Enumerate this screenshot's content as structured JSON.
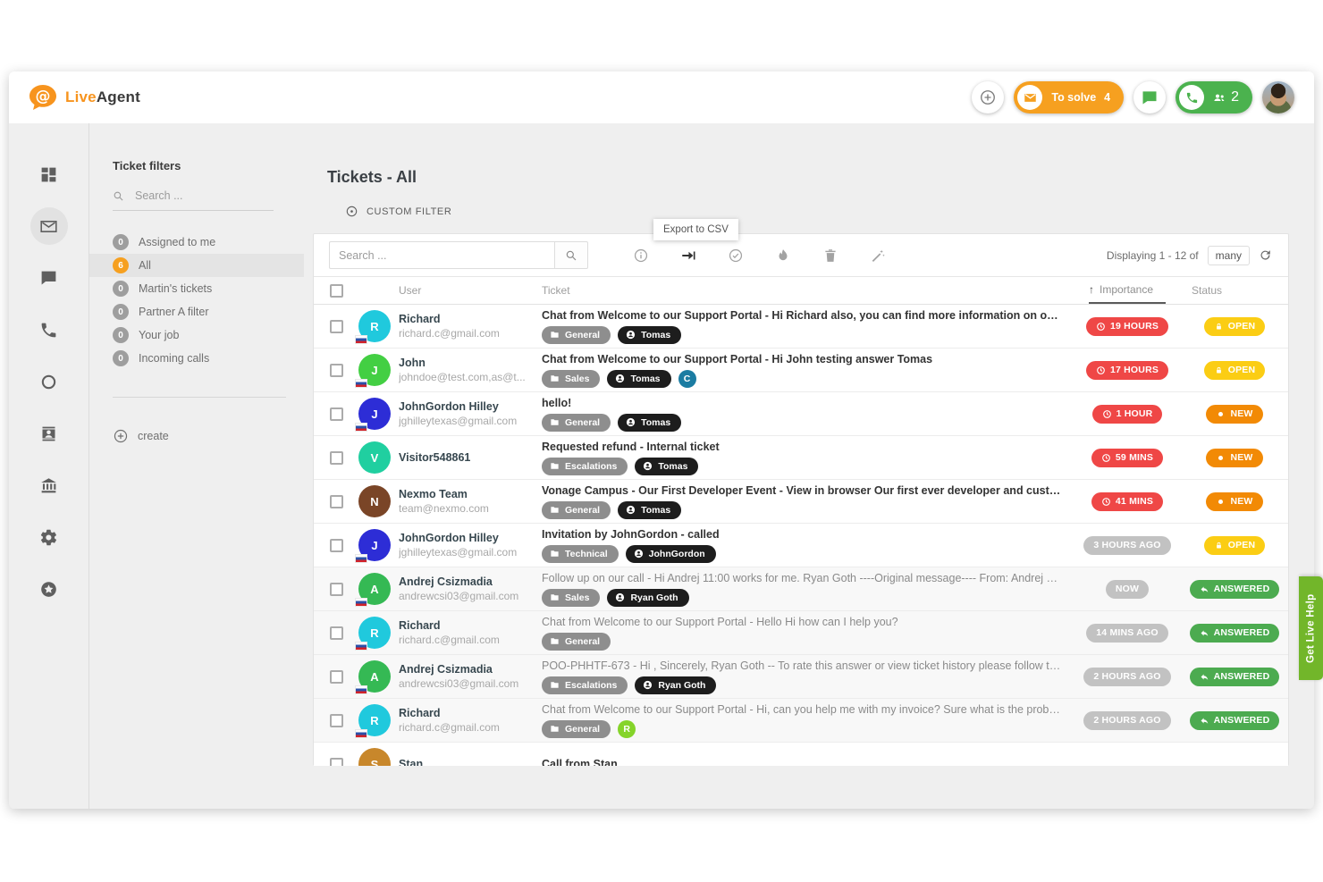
{
  "header": {
    "logo_live": "Live",
    "logo_agent": "Agent",
    "to_solve_label": "To solve",
    "to_solve_count": "4",
    "calls_count": "2"
  },
  "sidebar_icons": [
    {
      "name": "dashboard",
      "active": false
    },
    {
      "name": "mail",
      "active": true
    },
    {
      "name": "chat",
      "active": false
    },
    {
      "name": "phone",
      "active": false
    },
    {
      "name": "ring",
      "active": false
    },
    {
      "name": "contacts",
      "active": false
    },
    {
      "name": "company",
      "active": false
    },
    {
      "name": "settings",
      "active": false
    },
    {
      "name": "star",
      "active": false
    }
  ],
  "filters": {
    "title": "Ticket filters",
    "search_placeholder": "Search ...",
    "items": [
      {
        "count": "0",
        "label": "Assigned to me",
        "active": false
      },
      {
        "count": "6",
        "label": "All",
        "active": true
      },
      {
        "count": "0",
        "label": "Martin's tickets",
        "active": false
      },
      {
        "count": "0",
        "label": "Partner A filter",
        "active": false
      },
      {
        "count": "0",
        "label": "Your job",
        "active": false
      },
      {
        "count": "0",
        "label": "Incoming calls",
        "active": false
      }
    ],
    "create_label": "create"
  },
  "main": {
    "title": "Tickets - All",
    "custom_filter_label": "CUSTOM FILTER",
    "tooltip": "Export to CSV",
    "search_placeholder": "Search ...",
    "paging_text": "Displaying 1 - 12 of",
    "page_size": "many",
    "columns": {
      "user": "User",
      "ticket": "Ticket",
      "importance": "Importance",
      "status": "Status",
      "sort_arrow": "↑"
    }
  },
  "toolbar_icons": [
    "info",
    "export",
    "check-circle",
    "flame",
    "trash",
    "wand"
  ],
  "rows": [
    {
      "initial": "R",
      "avatar_color": "#20c9dd",
      "flag": true,
      "name": "Richard",
      "email": "richard.c@gmail.com",
      "subject": "Chat from Welcome to our Support Portal - Hi Richard also, you can find more information on our YouTube ...",
      "unread": true,
      "tags": [
        {
          "kind": "dept",
          "label": "General"
        },
        {
          "kind": "agent",
          "label": "Tomas"
        }
      ],
      "importance": {
        "label": "19 HOURS",
        "type": "red"
      },
      "status": {
        "label": "OPEN",
        "type": "open"
      }
    },
    {
      "initial": "J",
      "avatar_color": "#43cf43",
      "flag": true,
      "name": "John",
      "email": "johndoe@test.com,as@t...",
      "subject": "Chat from Welcome to our Support Portal - Hi John testing answer Tomas",
      "unread": true,
      "tags": [
        {
          "kind": "dept",
          "label": "Sales"
        },
        {
          "kind": "agent",
          "label": "Tomas"
        },
        {
          "kind": "badge",
          "label": "C",
          "color": "#1b7ca2"
        }
      ],
      "importance": {
        "label": "17 HOURS",
        "type": "red"
      },
      "status": {
        "label": "OPEN",
        "type": "open"
      }
    },
    {
      "initial": "J",
      "avatar_color": "#2d2dd6",
      "flag": true,
      "name": "JohnGordon Hilley",
      "email": "jghilleytexas@gmail.com",
      "subject": "hello!",
      "unread": true,
      "tags": [
        {
          "kind": "dept",
          "label": "General"
        },
        {
          "kind": "agent",
          "label": "Tomas"
        }
      ],
      "importance": {
        "label": "1 HOUR",
        "type": "red"
      },
      "status": {
        "label": "NEW",
        "type": "new"
      }
    },
    {
      "initial": "V",
      "avatar_color": "#20cfa0",
      "flag": false,
      "name": "Visitor548861",
      "email": "",
      "subject": "Requested refund - Internal ticket",
      "unread": true,
      "tags": [
        {
          "kind": "dept",
          "label": "Escalations"
        },
        {
          "kind": "agent",
          "label": "Tomas"
        }
      ],
      "importance": {
        "label": "59 MINS",
        "type": "red"
      },
      "status": {
        "label": "NEW",
        "type": "new"
      }
    },
    {
      "initial": "N",
      "avatar_color": "#7a4527",
      "flag": false,
      "name": "Nexmo Team",
      "email": "team@nexmo.com",
      "subject": "Vonage Campus - Our First Developer Event - View in browser Our first ever developer and customer confer...",
      "unread": true,
      "tags": [
        {
          "kind": "dept",
          "label": "General"
        },
        {
          "kind": "agent",
          "label": "Tomas"
        }
      ],
      "importance": {
        "label": "41 MINS",
        "type": "red"
      },
      "status": {
        "label": "NEW",
        "type": "new"
      }
    },
    {
      "initial": "J",
      "avatar_color": "#2d2dd6",
      "flag": true,
      "name": "JohnGordon Hilley",
      "email": "jghilleytexas@gmail.com",
      "subject": "Invitation by JohnGordon - called",
      "unread": true,
      "tags": [
        {
          "kind": "dept",
          "label": "Technical"
        },
        {
          "kind": "agent",
          "label": "JohnGordon"
        }
      ],
      "importance": {
        "label": "3 HOURS AGO",
        "type": "gray"
      },
      "status": {
        "label": "OPEN",
        "type": "open"
      }
    },
    {
      "initial": "A",
      "avatar_color": "#35b954",
      "flag": true,
      "name": "Andrej Csizmadia",
      "email": "andrewcsi03@gmail.com",
      "subject": "Follow up on our call - Hi Andrej 11:00 works for me. Ryan Goth ----Original message---- From: Andrej Csizm...",
      "unread": false,
      "tags": [
        {
          "kind": "dept",
          "label": "Sales"
        },
        {
          "kind": "agent",
          "label": "Ryan Goth"
        }
      ],
      "importance": {
        "label": "NOW",
        "type": "gray"
      },
      "status": {
        "label": "ANSWERED",
        "type": "answered"
      }
    },
    {
      "initial": "R",
      "avatar_color": "#20c9dd",
      "flag": true,
      "name": "Richard",
      "email": "richard.c@gmail.com",
      "subject": "Chat from Welcome to our Support Portal - Hello Hi how can I help you?",
      "unread": false,
      "tags": [
        {
          "kind": "dept",
          "label": "General"
        }
      ],
      "importance": {
        "label": "14 MINS AGO",
        "type": "gray"
      },
      "status": {
        "label": "ANSWERED",
        "type": "answered"
      }
    },
    {
      "initial": "A",
      "avatar_color": "#35b954",
      "flag": true,
      "name": "Andrej Csizmadia",
      "email": "andrewcsi03@gmail.com",
      "subject": "POO-PHHTF-673 - Hi , Sincerely, Ryan Goth -- To rate this answer or view ticket history please follow the link: ...",
      "unread": false,
      "tags": [
        {
          "kind": "dept",
          "label": "Escalations"
        },
        {
          "kind": "agent",
          "label": "Ryan Goth"
        }
      ],
      "importance": {
        "label": "2 HOURS AGO",
        "type": "gray"
      },
      "status": {
        "label": "ANSWERED",
        "type": "answered"
      }
    },
    {
      "initial": "R",
      "avatar_color": "#20c9dd",
      "flag": true,
      "name": "Richard",
      "email": "richard.c@gmail.com",
      "subject": "Chat from Welcome to our Support Portal - Hi, can you help me with my invoice? Sure what is the problem? I ...",
      "unread": false,
      "tags": [
        {
          "kind": "dept",
          "label": "General"
        },
        {
          "kind": "badge",
          "label": "R",
          "color": "#85d42a"
        }
      ],
      "importance": {
        "label": "2 HOURS AGO",
        "type": "gray"
      },
      "status": {
        "label": "ANSWERED",
        "type": "answered"
      }
    },
    {
      "initial": "S",
      "avatar_color": "#c8872b",
      "flag": false,
      "name": "Stan",
      "email": "",
      "subject": "Call from Stan",
      "unread": true,
      "tags": [],
      "importance": null,
      "status": null
    }
  ],
  "live_help_label": "Get Live Help",
  "colors": {
    "brand_orange": "#f7941e",
    "pill_orange": "#f6a020",
    "pill_green": "#4bb24e",
    "badge_red": "#ef4746",
    "badge_gray": "#c2c2c2",
    "status_open": "#fbcd14",
    "status_new": "#f28a05",
    "status_answered": "#4cab50",
    "live_help_green": "#72b62a"
  }
}
